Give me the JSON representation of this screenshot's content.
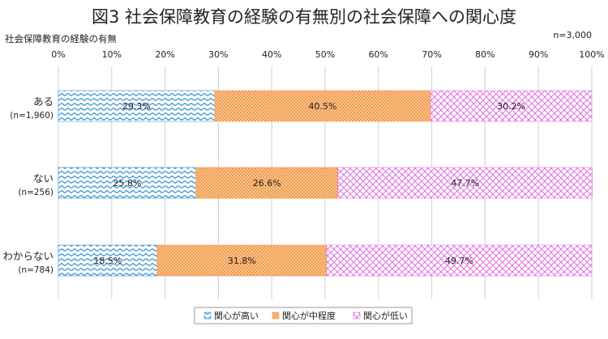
{
  "chart_data": {
    "type": "bar",
    "orientation": "horizontal",
    "stacked": true,
    "normalized": true,
    "title": "図3 社会保障教育の経験の有無別の社会保障への関心度",
    "subtitle": "社会保障教育の経験の有無",
    "sample_note": "n=3,000",
    "x_ticks": [
      "0%",
      "10%",
      "20%",
      "30%",
      "40%",
      "50%",
      "60%",
      "70%",
      "80%",
      "90%",
      "100%"
    ],
    "xlim": [
      0,
      100
    ],
    "grid": true,
    "legend_position": "bottom",
    "categories": [
      {
        "label": "ある",
        "n": "(n=1,960)"
      },
      {
        "label": "ない",
        "n": "(n=256)"
      },
      {
        "label": "わからない",
        "n": "(n=784)"
      }
    ],
    "series": [
      {
        "name": "関心が高い",
        "color": "#3b95d6",
        "pattern": "chevron",
        "values": [
          29.3,
          25.8,
          18.5
        ],
        "labels": [
          "29.3%",
          "25.8%",
          "18.5%"
        ]
      },
      {
        "name": "関心が中程度",
        "color": "#f39a4a",
        "pattern": "dots",
        "values": [
          40.5,
          26.6,
          31.8
        ],
        "labels": [
          "40.5%",
          "26.6%",
          "31.8%"
        ]
      },
      {
        "name": "関心が低い",
        "color": "#e070e0",
        "pattern": "crosshatch",
        "values": [
          30.2,
          47.7,
          49.7
        ],
        "labels": [
          "30.2%",
          "47.7%",
          "49.7%"
        ]
      }
    ]
  }
}
